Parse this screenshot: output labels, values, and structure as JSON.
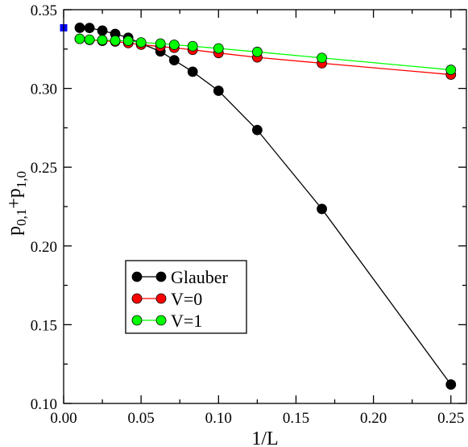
{
  "chart_data": {
    "type": "line",
    "xlabel": "1/L",
    "ylabel_parts": [
      "p",
      "0,1",
      "+p",
      "1,0"
    ],
    "xlim": [
      0.0,
      0.26
    ],
    "ylim": [
      0.1,
      0.35
    ],
    "xticks": [
      0.0,
      0.05,
      0.1,
      0.15,
      0.2,
      0.25
    ],
    "xtick_labels": [
      "0.00",
      "0.05",
      "0.10",
      "0.15",
      "0.20",
      "0.25"
    ],
    "yticks": [
      0.1,
      0.15,
      0.2,
      0.25,
      0.3,
      0.35
    ],
    "ytick_labels": [
      "0.10",
      "0.15",
      "0.20",
      "0.25",
      "0.30",
      "0.35"
    ],
    "grid": false,
    "legend_position": "lower-left",
    "series": [
      {
        "name": "Glauber",
        "color": "#000000",
        "x": [
          0.0104,
          0.0167,
          0.025,
          0.0333,
          0.0417,
          0.05,
          0.0625,
          0.0714,
          0.0833,
          0.1,
          0.125,
          0.1667,
          0.25
        ],
        "y": [
          0.3385,
          0.3384,
          0.3367,
          0.3346,
          0.3322,
          0.3285,
          0.3235,
          0.3179,
          0.3106,
          0.2985,
          0.2736,
          0.2235,
          0.112
        ]
      },
      {
        "name": "V=0",
        "color": "#ff0000",
        "x": [
          0.0104,
          0.0167,
          0.025,
          0.0333,
          0.0417,
          0.05,
          0.0625,
          0.0714,
          0.0833,
          0.1,
          0.125,
          0.1667,
          0.25
        ],
        "y": [
          0.3315,
          0.3308,
          0.3302,
          0.3298,
          0.3288,
          0.3278,
          0.3266,
          0.3258,
          0.3245,
          0.3225,
          0.3197,
          0.316,
          0.3088
        ]
      },
      {
        "name": "V=1",
        "color": "#00ff00",
        "x": [
          0.0104,
          0.0167,
          0.025,
          0.0333,
          0.0417,
          0.05,
          0.0625,
          0.0714,
          0.0833,
          0.1,
          0.125,
          0.1667,
          0.25
        ],
        "y": [
          0.3315,
          0.331,
          0.3307,
          0.3304,
          0.3302,
          0.3292,
          0.3285,
          0.3277,
          0.3268,
          0.3254,
          0.3232,
          0.3194,
          0.3118
        ]
      }
    ],
    "extra_points": [
      {
        "x": 0.0,
        "y": 0.3385,
        "color": "#0000ff",
        "marker": "square"
      }
    ]
  }
}
